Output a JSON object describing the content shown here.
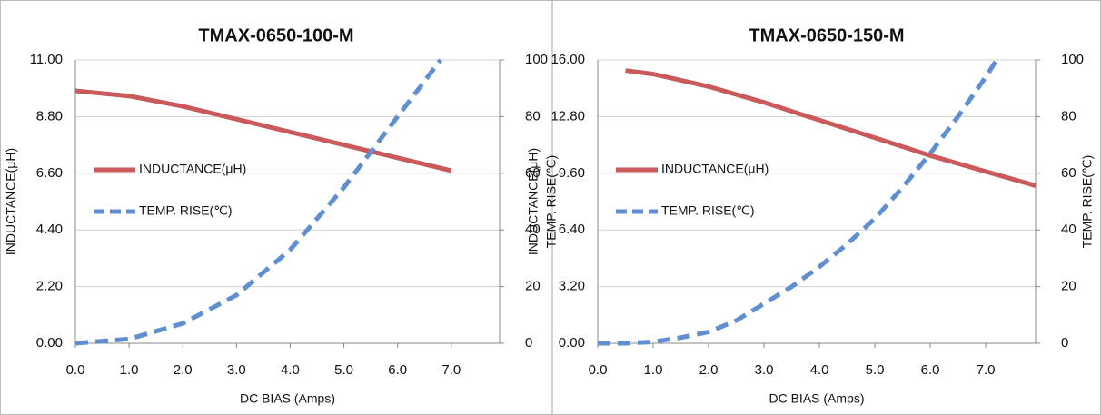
{
  "chart_data": [
    {
      "type": "line",
      "title": "TMAX-0650-100-M",
      "x_label": "DC BIAS (Amps)",
      "y_label": "INDUCTANCE(μH)",
      "y2_label": "TEMP. RISE(℃)",
      "xlim": [
        0,
        7.9
      ],
      "xticks": [
        {
          "value": 0,
          "label": "0.0"
        },
        {
          "value": 1,
          "label": "1.0"
        },
        {
          "value": 2,
          "label": "2.0"
        },
        {
          "value": 3,
          "label": "3.0"
        },
        {
          "value": 4,
          "label": "4.0"
        },
        {
          "value": 5,
          "label": "5.0"
        },
        {
          "value": 6,
          "label": "6.0"
        },
        {
          "value": 7,
          "label": "7.0"
        }
      ],
      "ylim": [
        0,
        11
      ],
      "yticks": [
        {
          "value": 0,
          "label": "0.00"
        },
        {
          "value": 2.2,
          "label": "2.20"
        },
        {
          "value": 4.4,
          "label": "4.40"
        },
        {
          "value": 6.6,
          "label": "6.60"
        },
        {
          "value": 8.8,
          "label": "8.80"
        },
        {
          "value": 11,
          "label": "11.00"
        }
      ],
      "y2lim": [
        0,
        100
      ],
      "y2ticks": [
        0,
        20,
        40,
        60,
        80,
        100
      ],
      "grid": true,
      "legend": "left",
      "series": [
        {
          "name": "INDUCTANCE(μH)",
          "color": "#c9595a",
          "x": [
            0,
            1,
            2,
            3,
            4,
            5,
            6,
            7
          ],
          "values": [
            9.8,
            9.6,
            9.2,
            8.7,
            8.2,
            7.7,
            7.2,
            6.7
          ]
        },
        {
          "name": "TEMP. RISE(℃)",
          "color": "#5f8fd0",
          "axis": "y2",
          "dashed": true,
          "x": [
            0,
            1,
            2,
            3,
            4,
            5,
            6,
            6.8
          ],
          "values": [
            0,
            1.5,
            7,
            17,
            33,
            55,
            80,
            100
          ]
        }
      ]
    },
    {
      "type": "line",
      "title": "TMAX-0650-150-M",
      "x_label": "DC BIAS (Amps)",
      "y_label": "INDUCTANCE(μH)",
      "y2_label": "TEMP. RISE(℃)",
      "xlim": [
        0,
        7.9
      ],
      "xticks": [
        {
          "value": 0,
          "label": "0.0"
        },
        {
          "value": 1,
          "label": "1.0"
        },
        {
          "value": 2,
          "label": "2.0"
        },
        {
          "value": 3,
          "label": "3.0"
        },
        {
          "value": 4,
          "label": "4.0"
        },
        {
          "value": 5,
          "label": "5.0"
        },
        {
          "value": 6,
          "label": "6.0"
        },
        {
          "value": 7,
          "label": "7.0"
        }
      ],
      "ylim": [
        0,
        16
      ],
      "yticks": [
        {
          "value": 0,
          "label": "0.00"
        },
        {
          "value": 3.2,
          "label": "3.20"
        },
        {
          "value": 6.4,
          "label": "6.40"
        },
        {
          "value": 9.6,
          "label": "9.60"
        },
        {
          "value": 12.8,
          "label": "12.80"
        },
        {
          "value": 16,
          "label": "16.00"
        }
      ],
      "y2lim": [
        0,
        100
      ],
      "y2ticks": [
        0,
        20,
        40,
        60,
        80,
        100
      ],
      "grid": true,
      "legend": "left",
      "series": [
        {
          "name": "INDUCTANCE(μH)",
          "color": "#c9595a",
          "x": [
            0.5,
            1,
            2,
            3,
            4,
            5,
            6,
            7,
            7.9
          ],
          "values": [
            15.4,
            15.2,
            14.5,
            13.6,
            12.6,
            11.6,
            10.6,
            9.7,
            8.9
          ]
        },
        {
          "name": "TEMP. RISE(℃)",
          "color": "#5f8fd0",
          "axis": "y2",
          "dashed": true,
          "x": [
            0,
            0.5,
            1,
            1.5,
            2,
            2.5,
            3,
            3.5,
            4,
            4.5,
            5,
            5.5,
            6,
            6.5,
            7,
            7.2
          ],
          "values": [
            0,
            0,
            0.5,
            2,
            4,
            8,
            14,
            20,
            27,
            35,
            44,
            55,
            67,
            80,
            94,
            100
          ]
        }
      ]
    }
  ]
}
